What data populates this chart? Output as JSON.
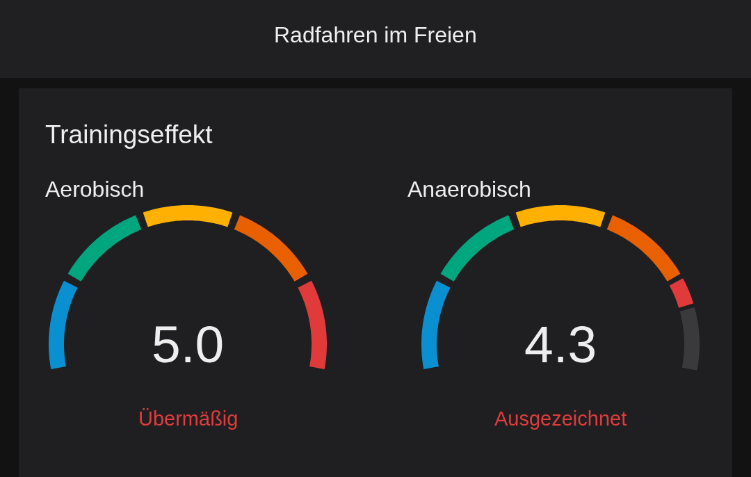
{
  "chart_data": [
    {
      "type": "other",
      "title": "Radfahren im Freien",
      "subtitle": "Trainingseffekt"
    },
    {
      "type": "donut",
      "title": "Aerobisch",
      "categories": [
        null,
        null,
        null,
        null,
        null
      ],
      "values": [
        20,
        20,
        20,
        20,
        20
      ],
      "colors": [
        "#0a8fd0",
        "#00a67e",
        "#ffb000",
        "#e86000",
        "#e03a3a"
      ],
      "annotations": [
        "5.0",
        "Übermäßig"
      ]
    },
    {
      "type": "donut",
      "title": "Anaerobisch",
      "categories": [
        null,
        null,
        null,
        null,
        null,
        null
      ],
      "values": [
        20,
        20,
        20,
        20,
        6,
        14
      ],
      "colors": [
        "#0a8fd0",
        "#00a67e",
        "#ffb000",
        "#e86000",
        "#e03a3a",
        "#3a3a3c"
      ],
      "annotations": [
        "4.3",
        "Ausgezeichnet"
      ]
    }
  ]
}
